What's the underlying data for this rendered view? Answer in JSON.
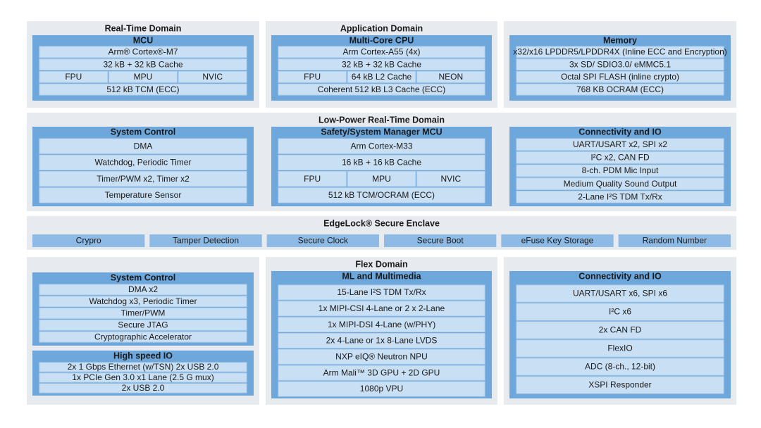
{
  "panels": [
    {
      "title": "Real-Time Domain",
      "blocks": [
        {
          "title": "MCU",
          "rows": [
            "Arm® Cortex®-M7",
            "32 kB + 32 kB Cache",
            [
              "FPU",
              "MPU",
              "NVIC"
            ],
            "512 kB TCM (ECC)"
          ]
        }
      ]
    },
    {
      "title": "Application Domain",
      "blocks": [
        {
          "title": "Multi-Core CPU",
          "rows": [
            "Arm Cortex-A55 (4x)",
            "32 kB + 32 kB Cache",
            [
              "FPU",
              "64 kB L2 Cache",
              "NEON"
            ],
            "Coherent 512 kB L3 Cache (ECC)"
          ]
        }
      ]
    },
    {
      "blocks": [
        {
          "title": "Memory",
          "rows": [
            "x32/x16 LPDDR5/LPDDR4X (Inline ECC and Encryption)",
            "3x SD/ SDIO3.0/ eMMC5.1",
            "Octal SPI FLASH (inline crypto)",
            "768 KB OCRAM (ECC)"
          ]
        }
      ]
    },
    {
      "title": "Low-Power Real-Time Domain",
      "blocks": [
        {
          "title": "System Control",
          "rows": [
            "DMA",
            "Watchdog, Periodic Timer",
            "Timer/PWM x2, Timer x2",
            "Temperature Sensor"
          ]
        },
        {
          "title": "Safety/System Manager MCU",
          "rows": [
            "Arm Cortex-M33",
            "16 kB + 16 kB Cache",
            [
              "FPU",
              "MPU",
              "NVIC"
            ],
            "512 kB TCM/OCRAM (ECC)"
          ]
        },
        {
          "title": "Connectivity and IO",
          "rows": [
            "UART/USART x2, SPI x2",
            "I²C x2, CAN FD",
            "8-ch. PDM Mic Input",
            "Medium Quality Sound Output",
            "2-Lane I²S TDM Tx/Rx"
          ]
        }
      ]
    },
    {
      "title": "EdgeLock® Secure Enclave",
      "blocks": [
        {
          "rows": [
            [
              "Crypro",
              "Tamper Detection",
              "Secure Clock",
              "Secure Boot",
              "eFuse Key Storage",
              "Random Number"
            ]
          ]
        }
      ]
    },
    {
      "blocks": [
        {
          "title": "System Control",
          "rows": [
            "DMA x2",
            "Watchdog x3, Periodic Timer",
            "Timer/PWM",
            "Secure JTAG",
            "Cryptographic Accelerator"
          ]
        },
        {
          "title": "High speed IO",
          "rows": [
            "2x 1 Gbps Ethernet (w/TSN) 2x USB 2.0",
            "1x PCIe Gen 3.0 x1 Lane (2.5 G mux)",
            "2x USB 2.0"
          ]
        }
      ]
    },
    {
      "title": "Flex Domain",
      "blocks": [
        {
          "title": "ML and Multimedia",
          "rows": [
            "15-Lane I²S TDM Tx/Rx",
            "1x MIPI-CSI 4-Lane or 2 x 2-Lane",
            "1x MIPI-DSI 4-Lane (w/PHY)",
            "2x 4-Lane or 1x 8-Lane LVDS",
            "NXP eIQ® Neutron NPU",
            "Arm Mali™ 3D GPU + 2D GPU",
            "1080p VPU"
          ]
        }
      ]
    },
    {
      "blocks": [
        {
          "title": "Connectivity and IO",
          "rows": [
            "UART/USART x6, SPI x6",
            "I²C x6",
            "2x CAN FD",
            "FlexIO",
            "ADC (8-ch., 12-bit)",
            "XSPI Responder"
          ]
        }
      ]
    }
  ]
}
